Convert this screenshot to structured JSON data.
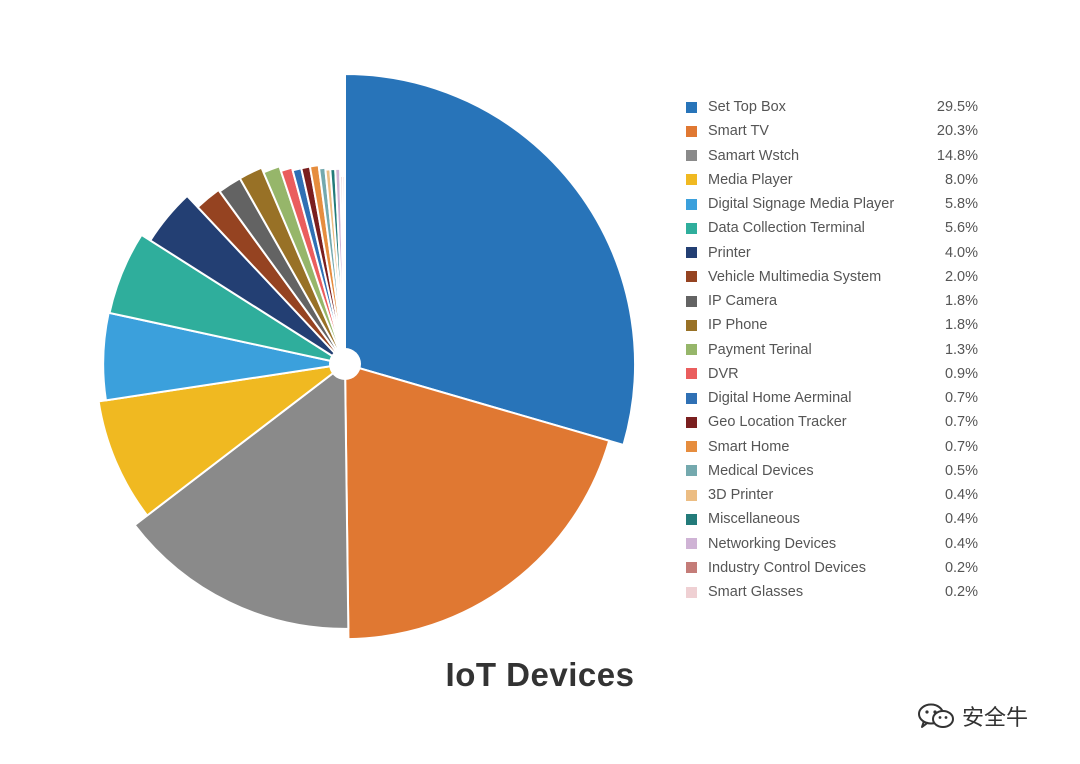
{
  "chart_data": {
    "type": "pie",
    "title": "IoT Devices",
    "legend_position": "right",
    "slices": [
      {
        "label": "Set Top Box",
        "value": 29.5,
        "display": "29.5%",
        "color": "#2874b9"
      },
      {
        "label": "Smart TV",
        "value": 20.3,
        "display": "20.3%",
        "color": "#e07832"
      },
      {
        "label": "Samart Wstch",
        "value": 14.8,
        "display": "14.8%",
        "color": "#8a8a8a"
      },
      {
        "label": "Media Player",
        "value": 8.0,
        "display": "8.0%",
        "color": "#f0b921"
      },
      {
        "label": "Digital Signage Media Player",
        "value": 5.8,
        "display": "5.8%",
        "color": "#3ba0dc"
      },
      {
        "label": "Data Collection Terminal",
        "value": 5.6,
        "display": "5.6%",
        "color": "#2fae9c"
      },
      {
        "label": "Printer",
        "value": 4.0,
        "display": "4.0%",
        "color": "#233f73"
      },
      {
        "label": "Vehicle Multimedia System",
        "value": 2.0,
        "display": "2.0%",
        "color": "#954321"
      },
      {
        "label": "IP Camera",
        "value": 1.8,
        "display": "1.8%",
        "color": "#636363"
      },
      {
        "label": "IP Phone",
        "value": 1.8,
        "display": "1.8%",
        "color": "#987126"
      },
      {
        "label": "Payment Terinal",
        "value": 1.3,
        "display": "1.3%",
        "color": "#96b66a"
      },
      {
        "label": "DVR",
        "value": 0.9,
        "display": "0.9%",
        "color": "#ea5d5d"
      },
      {
        "label": "Digital Home Aerminal",
        "value": 0.7,
        "display": "0.7%",
        "color": "#2f70b4"
      },
      {
        "label": "Geo Location Tracker",
        "value": 0.7,
        "display": "0.7%",
        "color": "#7a1f1f"
      },
      {
        "label": "Smart Home",
        "value": 0.7,
        "display": "0.7%",
        "color": "#e68d3e"
      },
      {
        "label": "Medical Devices",
        "value": 0.5,
        "display": "0.5%",
        "color": "#74a9ae"
      },
      {
        "label": "3D Printer",
        "value": 0.4,
        "display": "0.4%",
        "color": "#ecbd83"
      },
      {
        "label": "Miscellaneous",
        "value": 0.4,
        "display": "0.4%",
        "color": "#237b7a"
      },
      {
        "label": "Networking Devices",
        "value": 0.4,
        "display": "0.4%",
        "color": "#cfb3d5"
      },
      {
        "label": "Industry Control Devices",
        "value": 0.2,
        "display": "0.2%",
        "color": "#c47c78"
      },
      {
        "label": "Smart Glasses",
        "value": 0.2,
        "display": "0.2%",
        "color": "#efd0d3"
      }
    ]
  },
  "watermark": {
    "text": "安全牛",
    "icon": "wechat-icon"
  }
}
